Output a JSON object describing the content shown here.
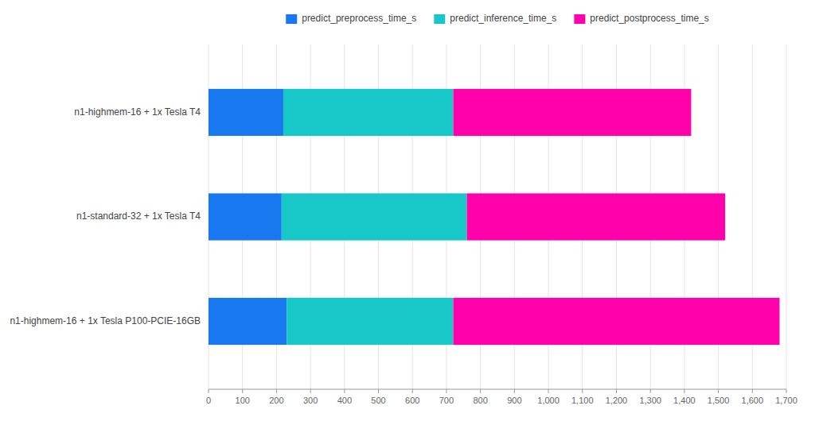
{
  "chart_data": {
    "type": "bar",
    "orientation": "horizontal",
    "stacked": true,
    "categories": [
      "n1-highmem-16 + 1x Tesla P100-PCIE-16GB",
      "n1-standard-32 + 1x Tesla T4",
      "n1-highmem-16 + 1x Tesla T4"
    ],
    "series": [
      {
        "name": "predict_preprocess_time_s",
        "color": "#1878F0",
        "values": [
          230,
          215,
          220
        ]
      },
      {
        "name": "predict_inference_time_s",
        "color": "#18C8C8",
        "values": [
          490,
          545,
          500
        ]
      },
      {
        "name": "predict_postprocess_time_s",
        "color": "#FF00AA",
        "values": [
          960,
          760,
          700
        ]
      }
    ],
    "xlim": [
      0,
      1700
    ],
    "xticks": [
      0,
      100,
      200,
      300,
      400,
      500,
      600,
      700,
      800,
      900,
      {
        "value": 1000,
        "label": "1,000"
      },
      {
        "value": 1100,
        "label": "1,100"
      },
      {
        "value": 1200,
        "label": "1,200"
      },
      {
        "value": 1300,
        "label": "1,300"
      },
      {
        "value": 1400,
        "label": "1,400"
      },
      {
        "value": 1500,
        "label": "1,500"
      },
      {
        "value": 1600,
        "label": "1,600"
      },
      {
        "value": 1700,
        "label": "1,700"
      }
    ],
    "grid": true,
    "legend": "top"
  }
}
